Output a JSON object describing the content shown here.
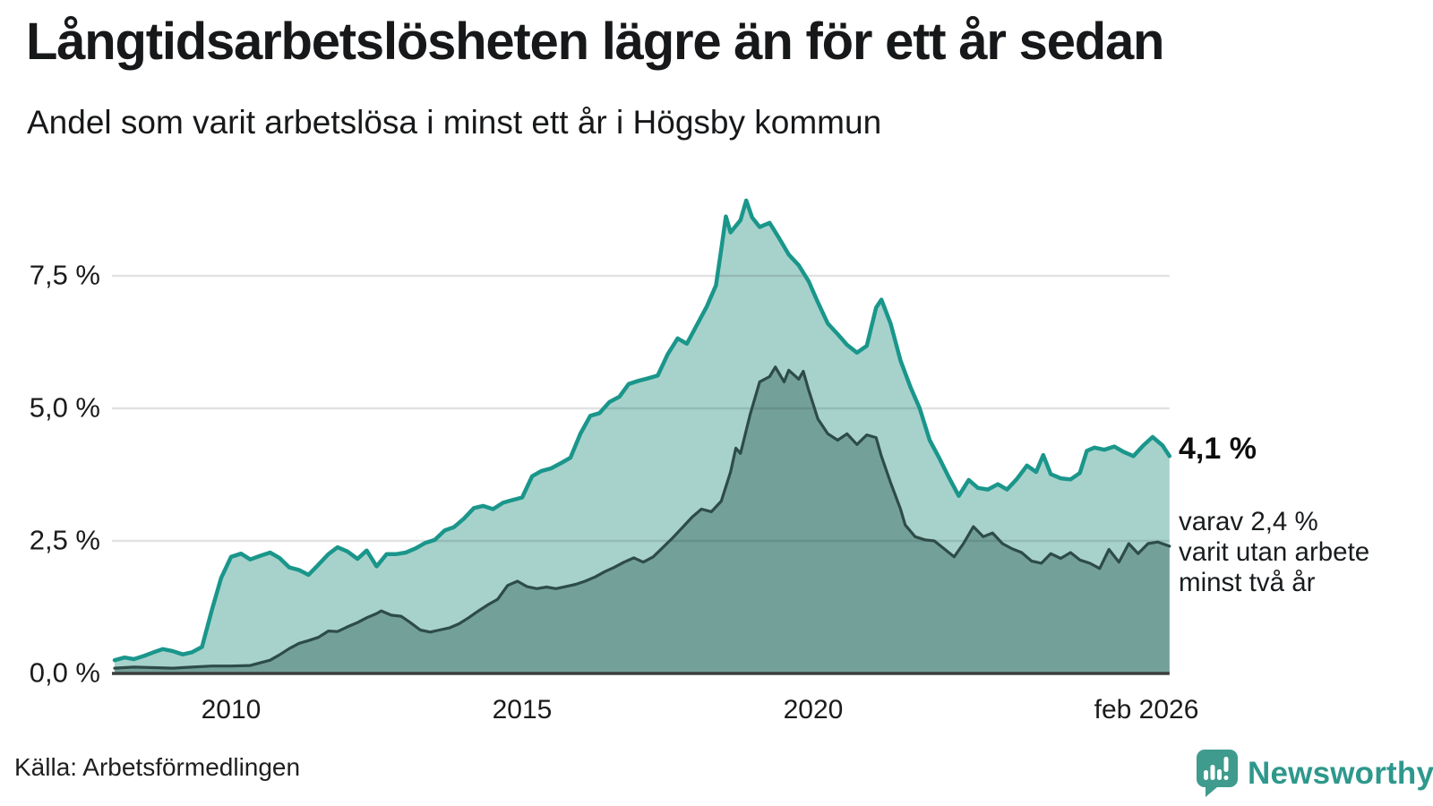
{
  "header": {
    "title": "Långtidsarbetslösheten lägre än för ett år sedan",
    "subtitle": "Andel som varit arbetslösa i minst ett år i Högsby kommun"
  },
  "annotations": {
    "total_label": "4,1 %",
    "detail_lines": [
      "varav 2,4 %",
      "varit utan arbete",
      "minst två år"
    ]
  },
  "footer": {
    "source": "Källa: Arbetsförmedlingen",
    "logo_text": "Newsworthy"
  },
  "colors": {
    "teal_line": "#1a968b",
    "teal_fill": "#a7d2cb",
    "dark_line": "#2e4c47",
    "dark_fill": "#73a19a",
    "grid": "rgba(25,30,35,0.13)",
    "axis": "#3b403f",
    "logo_teal": "#2e988c"
  },
  "chart_data": {
    "type": "area",
    "title": "Långtidsarbetslösheten lägre än för ett år sedan",
    "subtitle": "Andel som varit arbetslösa i minst ett år i Högsby kommun",
    "unit": "%",
    "xlim": [
      2008.0,
      2026.12
    ],
    "ylim": [
      0,
      9.3
    ],
    "grid": true,
    "legend_position": "none",
    "yticks": [
      {
        "label": "7,5 %",
        "value": 7.5
      },
      {
        "label": "5,0 %",
        "value": 5.0
      },
      {
        "label": "2,5 %",
        "value": 2.5
      },
      {
        "label": "0,0 %",
        "value": 0.0
      }
    ],
    "xticks": [
      {
        "label": "2010",
        "year": 2010
      },
      {
        "label": "2015",
        "year": 2015
      },
      {
        "label": "2020",
        "year": 2020
      },
      {
        "label": "feb 2026",
        "year": 2026.12
      }
    ],
    "series": [
      {
        "name": "Arbetslösa minst ett år",
        "end_value": 4.1,
        "end_label": "4,1 %",
        "points": [
          [
            2008.0,
            0.25
          ],
          [
            2008.17,
            0.3
          ],
          [
            2008.33,
            0.27
          ],
          [
            2008.5,
            0.33
          ],
          [
            2008.67,
            0.4
          ],
          [
            2008.83,
            0.46
          ],
          [
            2009.0,
            0.42
          ],
          [
            2009.17,
            0.36
          ],
          [
            2009.33,
            0.4
          ],
          [
            2009.5,
            0.5
          ],
          [
            2009.67,
            1.2
          ],
          [
            2009.83,
            1.8
          ],
          [
            2010.0,
            2.2
          ],
          [
            2010.17,
            2.26
          ],
          [
            2010.33,
            2.15
          ],
          [
            2010.5,
            2.22
          ],
          [
            2010.67,
            2.28
          ],
          [
            2010.83,
            2.18
          ],
          [
            2011.0,
            2.0
          ],
          [
            2011.17,
            1.95
          ],
          [
            2011.33,
            1.86
          ],
          [
            2011.5,
            2.05
          ],
          [
            2011.67,
            2.25
          ],
          [
            2011.83,
            2.38
          ],
          [
            2012.0,
            2.3
          ],
          [
            2012.17,
            2.16
          ],
          [
            2012.33,
            2.32
          ],
          [
            2012.5,
            2.02
          ],
          [
            2012.67,
            2.25
          ],
          [
            2012.83,
            2.25
          ],
          [
            2013.0,
            2.28
          ],
          [
            2013.17,
            2.36
          ],
          [
            2013.33,
            2.46
          ],
          [
            2013.5,
            2.52
          ],
          [
            2013.67,
            2.7
          ],
          [
            2013.83,
            2.76
          ],
          [
            2014.0,
            2.92
          ],
          [
            2014.17,
            3.12
          ],
          [
            2014.33,
            3.16
          ],
          [
            2014.5,
            3.1
          ],
          [
            2014.67,
            3.22
          ],
          [
            2014.83,
            3.27
          ],
          [
            2015.0,
            3.32
          ],
          [
            2015.17,
            3.72
          ],
          [
            2015.33,
            3.82
          ],
          [
            2015.5,
            3.87
          ],
          [
            2015.67,
            3.97
          ],
          [
            2015.83,
            4.07
          ],
          [
            2016.0,
            4.52
          ],
          [
            2016.17,
            4.86
          ],
          [
            2016.33,
            4.91
          ],
          [
            2016.5,
            5.12
          ],
          [
            2016.67,
            5.22
          ],
          [
            2016.83,
            5.46
          ],
          [
            2017.0,
            5.52
          ],
          [
            2017.17,
            5.57
          ],
          [
            2017.33,
            5.62
          ],
          [
            2017.5,
            6.02
          ],
          [
            2017.67,
            6.32
          ],
          [
            2017.83,
            6.22
          ],
          [
            2018.0,
            6.57
          ],
          [
            2018.17,
            6.92
          ],
          [
            2018.33,
            7.32
          ],
          [
            2018.42,
            8.0
          ],
          [
            2018.5,
            8.62
          ],
          [
            2018.58,
            8.32
          ],
          [
            2018.75,
            8.55
          ],
          [
            2018.85,
            8.92
          ],
          [
            2018.95,
            8.6
          ],
          [
            2019.08,
            8.42
          ],
          [
            2019.25,
            8.5
          ],
          [
            2019.42,
            8.2
          ],
          [
            2019.58,
            7.9
          ],
          [
            2019.75,
            7.7
          ],
          [
            2019.92,
            7.4
          ],
          [
            2020.08,
            7.0
          ],
          [
            2020.25,
            6.6
          ],
          [
            2020.42,
            6.4
          ],
          [
            2020.58,
            6.2
          ],
          [
            2020.75,
            6.05
          ],
          [
            2020.92,
            6.18
          ],
          [
            2021.08,
            6.9
          ],
          [
            2021.17,
            7.05
          ],
          [
            2021.33,
            6.6
          ],
          [
            2021.5,
            5.9
          ],
          [
            2021.67,
            5.4
          ],
          [
            2021.83,
            5.0
          ],
          [
            2022.0,
            4.4
          ],
          [
            2022.17,
            4.05
          ],
          [
            2022.33,
            3.7
          ],
          [
            2022.5,
            3.35
          ],
          [
            2022.67,
            3.65
          ],
          [
            2022.83,
            3.5
          ],
          [
            2023.0,
            3.47
          ],
          [
            2023.17,
            3.57
          ],
          [
            2023.33,
            3.47
          ],
          [
            2023.5,
            3.67
          ],
          [
            2023.67,
            3.92
          ],
          [
            2023.83,
            3.8
          ],
          [
            2023.95,
            4.12
          ],
          [
            2024.08,
            3.76
          ],
          [
            2024.25,
            3.68
          ],
          [
            2024.42,
            3.66
          ],
          [
            2024.58,
            3.78
          ],
          [
            2024.7,
            4.2
          ],
          [
            2024.83,
            4.26
          ],
          [
            2025.0,
            4.22
          ],
          [
            2025.17,
            4.28
          ],
          [
            2025.33,
            4.18
          ],
          [
            2025.5,
            4.1
          ],
          [
            2025.67,
            4.3
          ],
          [
            2025.83,
            4.46
          ],
          [
            2026.0,
            4.3
          ],
          [
            2026.12,
            4.1
          ]
        ]
      },
      {
        "name": "Arbetslösa minst två år",
        "end_value": 2.4,
        "end_label": "2,4 %",
        "points": [
          [
            2008.0,
            0.1
          ],
          [
            2008.33,
            0.12
          ],
          [
            2008.67,
            0.11
          ],
          [
            2009.0,
            0.1
          ],
          [
            2009.33,
            0.12
          ],
          [
            2009.67,
            0.14
          ],
          [
            2010.0,
            0.14
          ],
          [
            2010.33,
            0.15
          ],
          [
            2010.67,
            0.25
          ],
          [
            2010.83,
            0.35
          ],
          [
            2011.0,
            0.47
          ],
          [
            2011.17,
            0.57
          ],
          [
            2011.33,
            0.62
          ],
          [
            2011.5,
            0.68
          ],
          [
            2011.67,
            0.8
          ],
          [
            2011.83,
            0.79
          ],
          [
            2012.0,
            0.88
          ],
          [
            2012.17,
            0.96
          ],
          [
            2012.33,
            1.05
          ],
          [
            2012.5,
            1.13
          ],
          [
            2012.58,
            1.18
          ],
          [
            2012.75,
            1.1
          ],
          [
            2012.92,
            1.08
          ],
          [
            2013.08,
            0.96
          ],
          [
            2013.25,
            0.82
          ],
          [
            2013.42,
            0.78
          ],
          [
            2013.58,
            0.82
          ],
          [
            2013.75,
            0.86
          ],
          [
            2013.92,
            0.94
          ],
          [
            2014.08,
            1.05
          ],
          [
            2014.25,
            1.18
          ],
          [
            2014.42,
            1.3
          ],
          [
            2014.58,
            1.4
          ],
          [
            2014.75,
            1.66
          ],
          [
            2014.92,
            1.74
          ],
          [
            2015.08,
            1.64
          ],
          [
            2015.25,
            1.6
          ],
          [
            2015.42,
            1.63
          ],
          [
            2015.58,
            1.6
          ],
          [
            2015.75,
            1.64
          ],
          [
            2015.92,
            1.68
          ],
          [
            2016.08,
            1.74
          ],
          [
            2016.25,
            1.82
          ],
          [
            2016.42,
            1.92
          ],
          [
            2016.58,
            2.0
          ],
          [
            2016.75,
            2.1
          ],
          [
            2016.92,
            2.18
          ],
          [
            2017.08,
            2.1
          ],
          [
            2017.25,
            2.2
          ],
          [
            2017.42,
            2.38
          ],
          [
            2017.58,
            2.55
          ],
          [
            2017.75,
            2.75
          ],
          [
            2017.92,
            2.95
          ],
          [
            2018.08,
            3.1
          ],
          [
            2018.25,
            3.05
          ],
          [
            2018.42,
            3.25
          ],
          [
            2018.58,
            3.8
          ],
          [
            2018.67,
            4.25
          ],
          [
            2018.75,
            4.15
          ],
          [
            2018.92,
            4.9
          ],
          [
            2019.08,
            5.5
          ],
          [
            2019.25,
            5.6
          ],
          [
            2019.35,
            5.78
          ],
          [
            2019.5,
            5.5
          ],
          [
            2019.58,
            5.72
          ],
          [
            2019.75,
            5.55
          ],
          [
            2019.83,
            5.7
          ],
          [
            2019.92,
            5.35
          ],
          [
            2020.08,
            4.8
          ],
          [
            2020.25,
            4.52
          ],
          [
            2020.42,
            4.4
          ],
          [
            2020.58,
            4.52
          ],
          [
            2020.75,
            4.32
          ],
          [
            2020.92,
            4.5
          ],
          [
            2021.08,
            4.45
          ],
          [
            2021.17,
            4.1
          ],
          [
            2021.33,
            3.6
          ],
          [
            2021.5,
            3.1
          ],
          [
            2021.58,
            2.8
          ],
          [
            2021.75,
            2.58
          ],
          [
            2021.92,
            2.52
          ],
          [
            2022.08,
            2.5
          ],
          [
            2022.25,
            2.35
          ],
          [
            2022.42,
            2.2
          ],
          [
            2022.58,
            2.45
          ],
          [
            2022.75,
            2.77
          ],
          [
            2022.92,
            2.58
          ],
          [
            2023.08,
            2.65
          ],
          [
            2023.25,
            2.45
          ],
          [
            2023.42,
            2.35
          ],
          [
            2023.58,
            2.28
          ],
          [
            2023.75,
            2.12
          ],
          [
            2023.92,
            2.08
          ],
          [
            2024.08,
            2.26
          ],
          [
            2024.25,
            2.17
          ],
          [
            2024.42,
            2.28
          ],
          [
            2024.58,
            2.14
          ],
          [
            2024.75,
            2.08
          ],
          [
            2024.92,
            1.98
          ],
          [
            2025.08,
            2.34
          ],
          [
            2025.25,
            2.1
          ],
          [
            2025.42,
            2.45
          ],
          [
            2025.58,
            2.26
          ],
          [
            2025.75,
            2.45
          ],
          [
            2025.92,
            2.48
          ],
          [
            2026.12,
            2.4
          ]
        ]
      }
    ]
  }
}
